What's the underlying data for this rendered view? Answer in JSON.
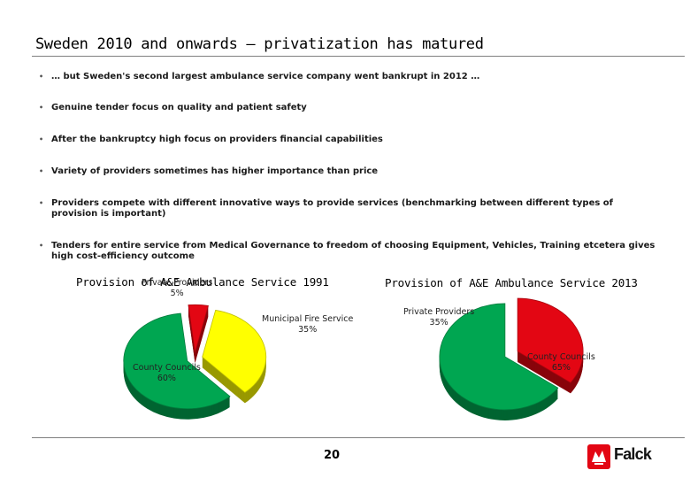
{
  "title": "Sweden 2010 and onwards – privatization has matured",
  "bullets": [
    "… but Sweden's second largest ambulance service company went bankrupt in 2012 …",
    "Genuine tender focus on quality and patient safety",
    "After the bankruptcy high focus on providers financial capabilities",
    "Variety of providers sometimes has higher importance than price",
    "Providers compete with different innovative ways to provide services (benchmarking between different types of provision is important)",
    "Tenders for entire service from Medical Governance to freedom of choosing Equipment, Vehicles, Training etcetera gives high cost-efficiency outcome"
  ],
  "chart_data": [
    {
      "type": "pie",
      "title": "Provision of A&E Ambulance Service 1991",
      "slices": [
        {
          "name": "Private Providers",
          "value": 5,
          "label": "5%",
          "color": "#e30613"
        },
        {
          "name": "Municipal Fire Service",
          "value": 35,
          "label": "35%",
          "color": "#ffff00"
        },
        {
          "name": "County Councils",
          "value": 60,
          "label": "60%",
          "color": "#00a651"
        }
      ],
      "exploded": true
    },
    {
      "type": "pie",
      "title": "Provision of A&E Ambulance Service 2013",
      "slices": [
        {
          "name": "Private Providers",
          "value": 35,
          "label": "35%",
          "color": "#e30613"
        },
        {
          "name": "County Councils",
          "value": 65,
          "label": "65%",
          "color": "#00a651"
        }
      ],
      "exploded": true
    }
  ],
  "footer": {
    "page_number": "20",
    "logo_text": "Falck",
    "logo_color": "#e30613"
  }
}
